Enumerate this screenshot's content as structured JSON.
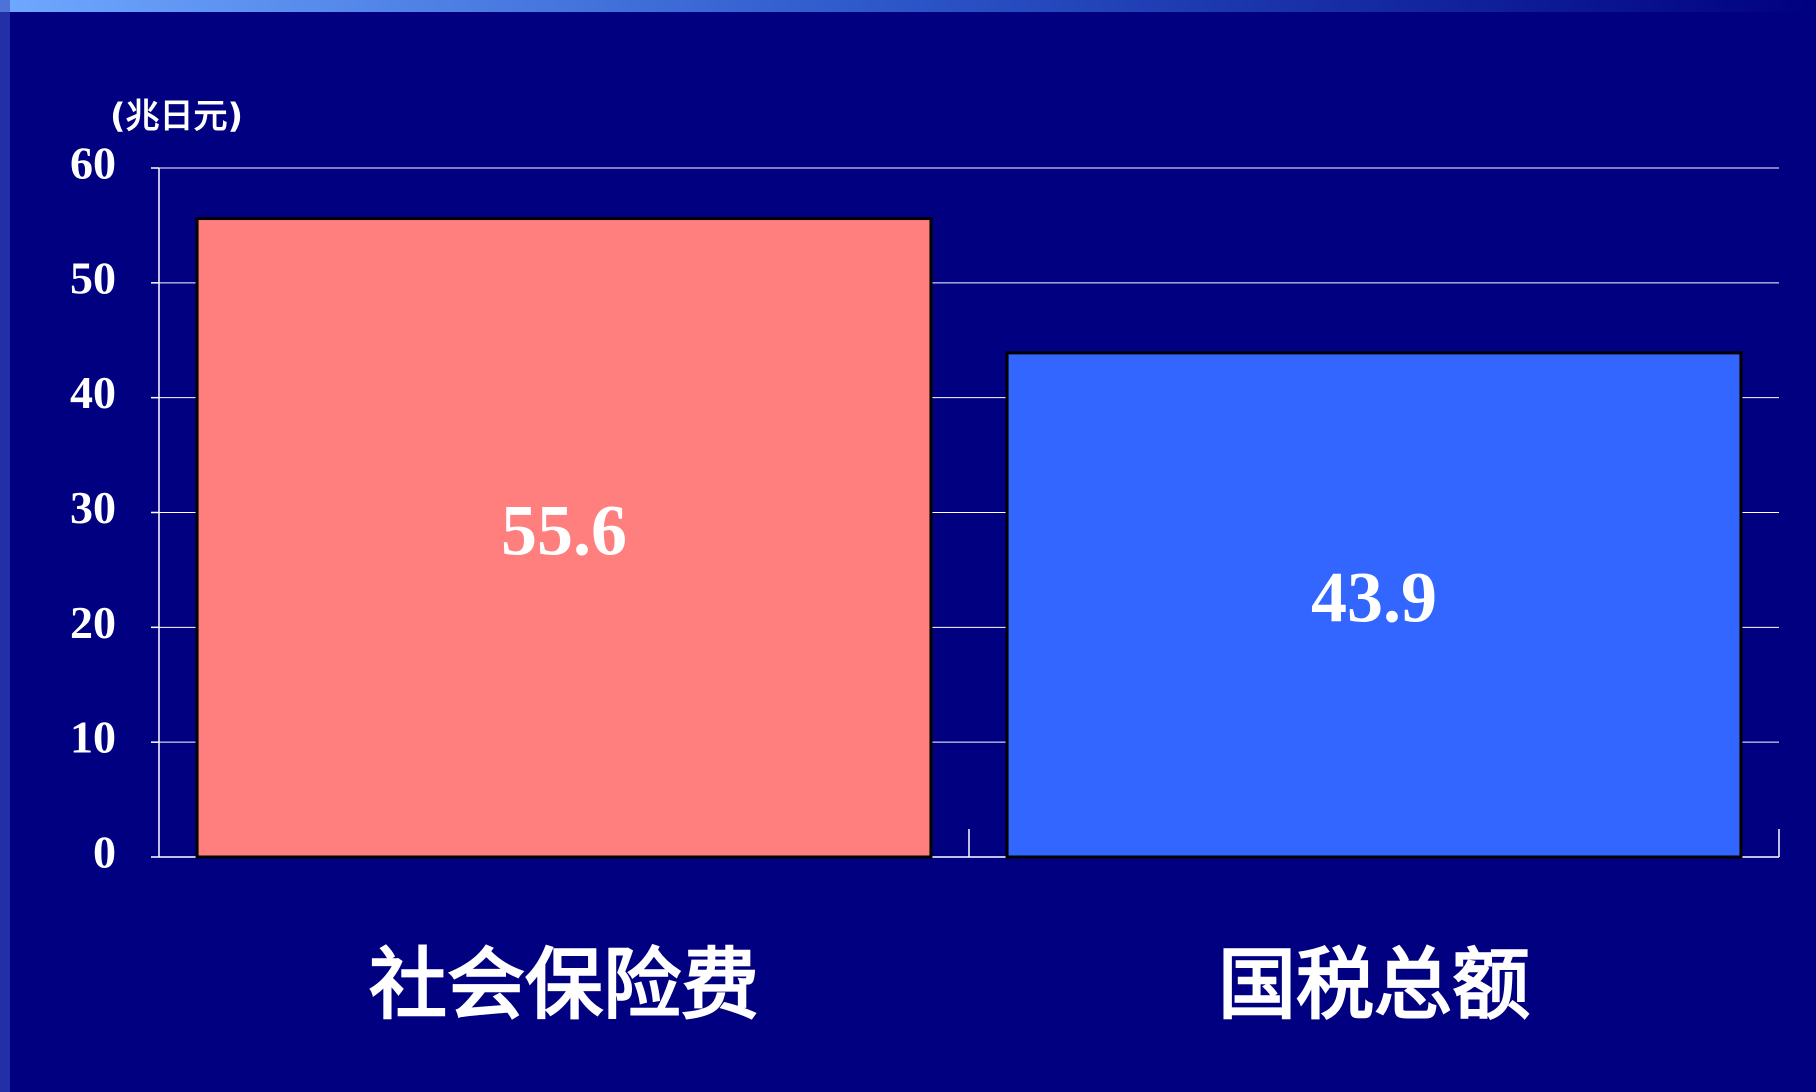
{
  "chart_data": {
    "type": "bar",
    "y_unit_label": "(兆日元)",
    "categories": [
      "社会保险费",
      "国税总额"
    ],
    "values": [
      55.6,
      43.9
    ],
    "colors": [
      "#ff7f7f",
      "#3366ff"
    ],
    "ylim": [
      0,
      60
    ],
    "yticks": [
      0,
      10,
      20,
      30,
      40,
      50,
      60
    ],
    "grid": true
  }
}
